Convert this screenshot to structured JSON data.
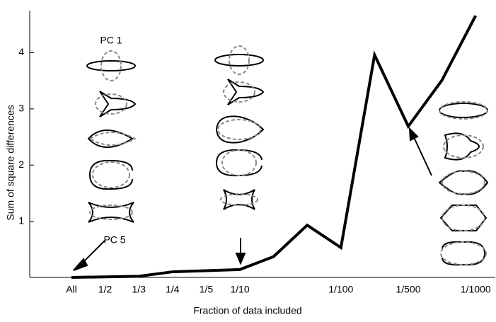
{
  "chart_data": {
    "type": "line",
    "x_label": "Fraction of data included",
    "y_label": "Sum of square differences",
    "categories": [
      "All",
      "1/2",
      "1/3",
      "1/4",
      "1/5",
      "1/10",
      null,
      null,
      "1/100",
      null,
      "1/500",
      null,
      "1/1000"
    ],
    "series": [
      {
        "color": "#000000",
        "values": [
          0.0,
          0.01,
          0.02,
          0.1,
          0.12,
          0.14,
          0.37,
          0.93,
          0.53,
          3.96,
          2.69,
          3.51,
          4.66
        ]
      }
    ],
    "ylim": [
      0,
      4.75
    ],
    "yticks": [
      1,
      2,
      3,
      4
    ],
    "annotations": [
      "PC 1",
      "PC 5"
    ]
  }
}
